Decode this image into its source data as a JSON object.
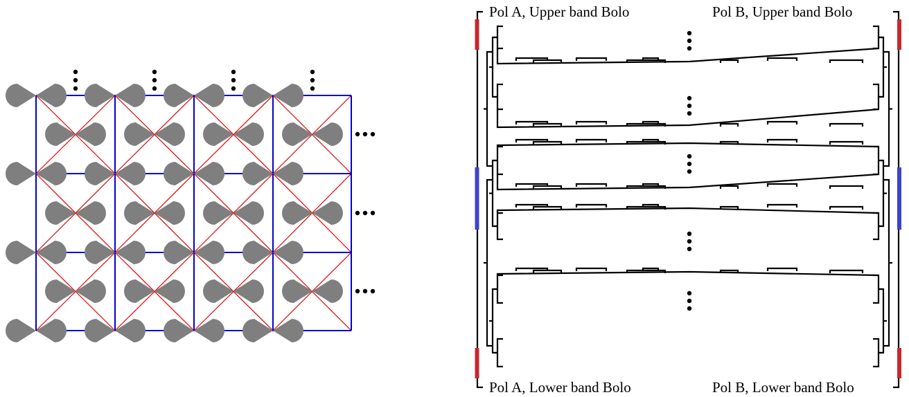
{
  "labels": {
    "pol_a_upper": "Pol A, Upper band Bolo",
    "pol_b_upper": "Pol B, Upper band Bolo",
    "pol_a_lower": "Pol A, Lower band Bolo",
    "pol_b_lower": "Pol B, Lower band Bolo"
  },
  "colors": {
    "antenna": "#7f7f7f",
    "grid": "#0000cc",
    "diagonal": "#e00000",
    "feed": "#000000",
    "red_segment": "#c8282e",
    "blue_segment": "#3c44c8"
  },
  "array": {
    "rows": 7,
    "grid_columns": 4,
    "grid_rows": 3
  }
}
